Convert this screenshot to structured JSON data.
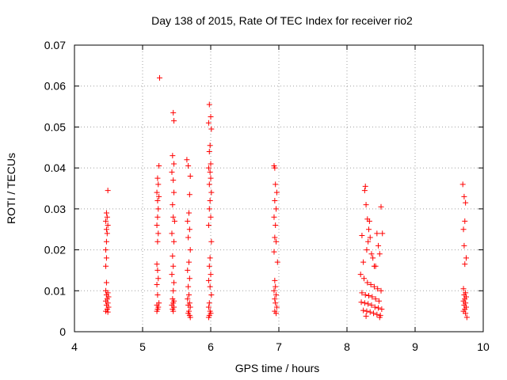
{
  "chart_data": {
    "type": "scatter",
    "title": "Day 138 of 2015, Rate Of TEC Index for receiver rio2",
    "xlabel": "GPS time / hours",
    "ylabel": "ROTI / TECUs",
    "xlim": [
      4,
      10
    ],
    "ylim": [
      0,
      0.07
    ],
    "xticks": [
      4,
      5,
      6,
      7,
      8,
      9,
      10
    ],
    "xtick_labels": [
      "4",
      "5",
      "6",
      "7",
      "8",
      "9",
      "10"
    ],
    "yticks": [
      0,
      0.01,
      0.02,
      0.03,
      0.04,
      0.05,
      0.06,
      0.07
    ],
    "ytick_labels": [
      "0",
      "0.01",
      "0.02",
      "0.03",
      "0.04",
      "0.05",
      "0.06",
      "0.07"
    ],
    "grid": true,
    "marker": "+",
    "color": "#ff0000",
    "series": [
      {
        "points": [
          [
            4.49,
            0.0345
          ],
          [
            4.47,
            0.029
          ],
          [
            4.48,
            0.028
          ],
          [
            4.46,
            0.027
          ],
          [
            4.49,
            0.026
          ],
          [
            4.47,
            0.025
          ],
          [
            4.48,
            0.024
          ],
          [
            4.47,
            0.022
          ],
          [
            4.46,
            0.02
          ],
          [
            4.47,
            0.018
          ],
          [
            4.46,
            0.016
          ],
          [
            4.47,
            0.012
          ],
          [
            4.46,
            0.01
          ],
          [
            4.49,
            0.0095
          ],
          [
            4.47,
            0.009
          ],
          [
            4.5,
            0.0085
          ],
          [
            4.48,
            0.008
          ],
          [
            4.46,
            0.0075
          ],
          [
            4.49,
            0.007
          ],
          [
            4.47,
            0.0065
          ],
          [
            4.5,
            0.006
          ],
          [
            4.48,
            0.0055
          ],
          [
            4.46,
            0.005
          ],
          [
            4.49,
            0.0048
          ],
          [
            5.25,
            0.062
          ],
          [
            5.24,
            0.0405
          ],
          [
            5.22,
            0.0375
          ],
          [
            5.23,
            0.036
          ],
          [
            5.21,
            0.034
          ],
          [
            5.24,
            0.033
          ],
          [
            5.22,
            0.032
          ],
          [
            5.23,
            0.03
          ],
          [
            5.22,
            0.028
          ],
          [
            5.21,
            0.026
          ],
          [
            5.23,
            0.024
          ],
          [
            5.22,
            0.022
          ],
          [
            5.21,
            0.0165
          ],
          [
            5.22,
            0.015
          ],
          [
            5.23,
            0.013
          ],
          [
            5.21,
            0.0115
          ],
          [
            5.22,
            0.009
          ],
          [
            5.24,
            0.007
          ],
          [
            5.21,
            0.0065
          ],
          [
            5.23,
            0.006
          ],
          [
            5.22,
            0.0055
          ],
          [
            5.21,
            0.005
          ],
          [
            5.45,
            0.0535
          ],
          [
            5.46,
            0.0515
          ],
          [
            5.44,
            0.043
          ],
          [
            5.46,
            0.041
          ],
          [
            5.43,
            0.039
          ],
          [
            5.45,
            0.037
          ],
          [
            5.46,
            0.034
          ],
          [
            5.44,
            0.031
          ],
          [
            5.45,
            0.028
          ],
          [
            5.47,
            0.027
          ],
          [
            5.43,
            0.024
          ],
          [
            5.46,
            0.022
          ],
          [
            5.44,
            0.0185
          ],
          [
            5.45,
            0.016
          ],
          [
            5.43,
            0.014
          ],
          [
            5.46,
            0.012
          ],
          [
            5.45,
            0.01
          ],
          [
            5.44,
            0.008
          ],
          [
            5.46,
            0.0075
          ],
          [
            5.45,
            0.007
          ],
          [
            5.43,
            0.0065
          ],
          [
            5.46,
            0.006
          ],
          [
            5.44,
            0.0055
          ],
          [
            5.45,
            0.005
          ],
          [
            5.65,
            0.042
          ],
          [
            5.67,
            0.0405
          ],
          [
            5.7,
            0.038
          ],
          [
            5.69,
            0.0335
          ],
          [
            5.68,
            0.029
          ],
          [
            5.66,
            0.027
          ],
          [
            5.69,
            0.025
          ],
          [
            5.67,
            0.023
          ],
          [
            5.7,
            0.02
          ],
          [
            5.68,
            0.017
          ],
          [
            5.66,
            0.015
          ],
          [
            5.69,
            0.013
          ],
          [
            5.67,
            0.011
          ],
          [
            5.68,
            0.009
          ],
          [
            5.66,
            0.008
          ],
          [
            5.69,
            0.007
          ],
          [
            5.67,
            0.0065
          ],
          [
            5.7,
            0.006
          ],
          [
            5.68,
            0.005
          ],
          [
            5.67,
            0.0045
          ],
          [
            5.69,
            0.004
          ],
          [
            5.7,
            0.0035
          ],
          [
            5.98,
            0.0555
          ],
          [
            6.0,
            0.0525
          ],
          [
            5.97,
            0.051
          ],
          [
            6.01,
            0.0495
          ],
          [
            5.99,
            0.0455
          ],
          [
            5.98,
            0.044
          ],
          [
            6.0,
            0.041
          ],
          [
            5.97,
            0.04
          ],
          [
            5.99,
            0.039
          ],
          [
            6.0,
            0.0375
          ],
          [
            5.98,
            0.036
          ],
          [
            6.01,
            0.034
          ],
          [
            5.99,
            0.032
          ],
          [
            5.98,
            0.03
          ],
          [
            6.0,
            0.028
          ],
          [
            5.97,
            0.026
          ],
          [
            6.01,
            0.022
          ],
          [
            5.99,
            0.018
          ],
          [
            5.98,
            0.016
          ],
          [
            6.0,
            0.014
          ],
          [
            5.97,
            0.0125
          ],
          [
            5.99,
            0.011
          ],
          [
            6.01,
            0.009
          ],
          [
            5.98,
            0.007
          ],
          [
            5.97,
            0.006
          ],
          [
            5.99,
            0.005
          ],
          [
            6.0,
            0.0045
          ],
          [
            5.98,
            0.004
          ],
          [
            5.97,
            0.0035
          ],
          [
            6.93,
            0.0405
          ],
          [
            6.94,
            0.04
          ],
          [
            6.95,
            0.036
          ],
          [
            6.97,
            0.034
          ],
          [
            6.94,
            0.032
          ],
          [
            6.96,
            0.03
          ],
          [
            6.93,
            0.028
          ],
          [
            6.95,
            0.026
          ],
          [
            6.94,
            0.023
          ],
          [
            6.96,
            0.022
          ],
          [
            6.93,
            0.0195
          ],
          [
            6.98,
            0.017
          ],
          [
            6.94,
            0.0125
          ],
          [
            6.95,
            0.011
          ],
          [
            6.93,
            0.01
          ],
          [
            6.96,
            0.009
          ],
          [
            6.94,
            0.008
          ],
          [
            6.95,
            0.007
          ],
          [
            6.97,
            0.006
          ],
          [
            6.94,
            0.005
          ],
          [
            6.96,
            0.0045
          ],
          [
            8.22,
            0.0235
          ],
          [
            8.27,
            0.0355
          ],
          [
            8.26,
            0.0345
          ],
          [
            8.28,
            0.031
          ],
          [
            8.3,
            0.0275
          ],
          [
            8.33,
            0.027
          ],
          [
            8.32,
            0.025
          ],
          [
            8.34,
            0.023
          ],
          [
            8.31,
            0.022
          ],
          [
            8.29,
            0.02
          ],
          [
            8.36,
            0.019
          ],
          [
            8.38,
            0.018
          ],
          [
            8.24,
            0.017
          ],
          [
            8.4,
            0.016
          ],
          [
            8.44,
            0.024
          ],
          [
            8.46,
            0.021
          ],
          [
            8.5,
            0.0305
          ],
          [
            8.52,
            0.024
          ],
          [
            8.48,
            0.019
          ],
          [
            8.42,
            0.016
          ],
          [
            8.2,
            0.014
          ],
          [
            8.25,
            0.013
          ],
          [
            8.3,
            0.012
          ],
          [
            8.35,
            0.0115
          ],
          [
            8.4,
            0.011
          ],
          [
            8.45,
            0.0105
          ],
          [
            8.5,
            0.01
          ],
          [
            8.22,
            0.0095
          ],
          [
            8.27,
            0.009
          ],
          [
            8.32,
            0.0088
          ],
          [
            8.37,
            0.0085
          ],
          [
            8.42,
            0.008
          ],
          [
            8.47,
            0.0075
          ],
          [
            8.21,
            0.0072
          ],
          [
            8.26,
            0.007
          ],
          [
            8.31,
            0.0068
          ],
          [
            8.36,
            0.0065
          ],
          [
            8.41,
            0.006
          ],
          [
            8.46,
            0.0058
          ],
          [
            8.51,
            0.0055
          ],
          [
            8.24,
            0.0052
          ],
          [
            8.29,
            0.005
          ],
          [
            8.34,
            0.0048
          ],
          [
            8.39,
            0.0045
          ],
          [
            8.44,
            0.0042
          ],
          [
            8.49,
            0.004
          ],
          [
            8.28,
            0.0038
          ],
          [
            8.48,
            0.0035
          ],
          [
            9.7,
            0.036
          ],
          [
            9.72,
            0.033
          ],
          [
            9.74,
            0.0315
          ],
          [
            9.73,
            0.027
          ],
          [
            9.71,
            0.025
          ],
          [
            9.72,
            0.021
          ],
          [
            9.75,
            0.018
          ],
          [
            9.73,
            0.0165
          ],
          [
            9.71,
            0.0105
          ],
          [
            9.74,
            0.0095
          ],
          [
            9.72,
            0.009
          ],
          [
            9.75,
            0.0085
          ],
          [
            9.73,
            0.008
          ],
          [
            9.71,
            0.0075
          ],
          [
            9.74,
            0.007
          ],
          [
            9.72,
            0.0065
          ],
          [
            9.75,
            0.006
          ],
          [
            9.73,
            0.0055
          ],
          [
            9.71,
            0.005
          ],
          [
            9.74,
            0.0045
          ],
          [
            9.76,
            0.0035
          ]
        ]
      }
    ]
  }
}
